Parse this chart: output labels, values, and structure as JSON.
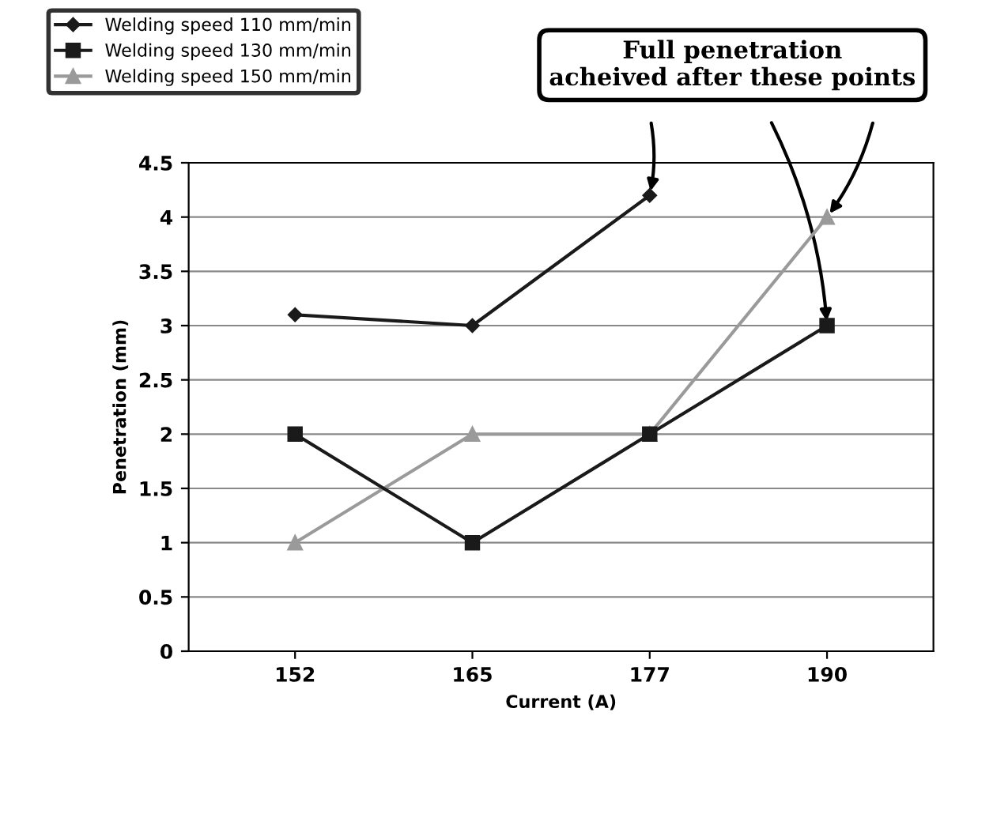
{
  "chart_data": {
    "type": "line",
    "xlabel": "Current (A)",
    "ylabel": "Penetration (mm)",
    "categories": [
      "152",
      "165",
      "177",
      "190"
    ],
    "series": [
      {
        "name": "Welding speed 110 mm/min",
        "color": "#1a1a1a",
        "marker": "diamond",
        "values": [
          3.1,
          3.0,
          4.2,
          null
        ]
      },
      {
        "name": "Welding speed 130 mm/min",
        "color": "#1a1a1a",
        "marker": "square",
        "values": [
          2,
          1,
          2,
          3
        ]
      },
      {
        "name": "Welding speed 150 mm/min",
        "color": "#9a9a9a",
        "marker": "triangle",
        "values": [
          1,
          2,
          2,
          4
        ]
      }
    ],
    "ylim": [
      0,
      4.5
    ],
    "yticks": [
      0,
      0.5,
      1,
      1.5,
      2,
      2.5,
      3,
      3.5,
      4,
      4.5
    ],
    "grid": "y",
    "legend": "top left",
    "annotations": [
      "Full penetration\nacheived after these points"
    ]
  }
}
